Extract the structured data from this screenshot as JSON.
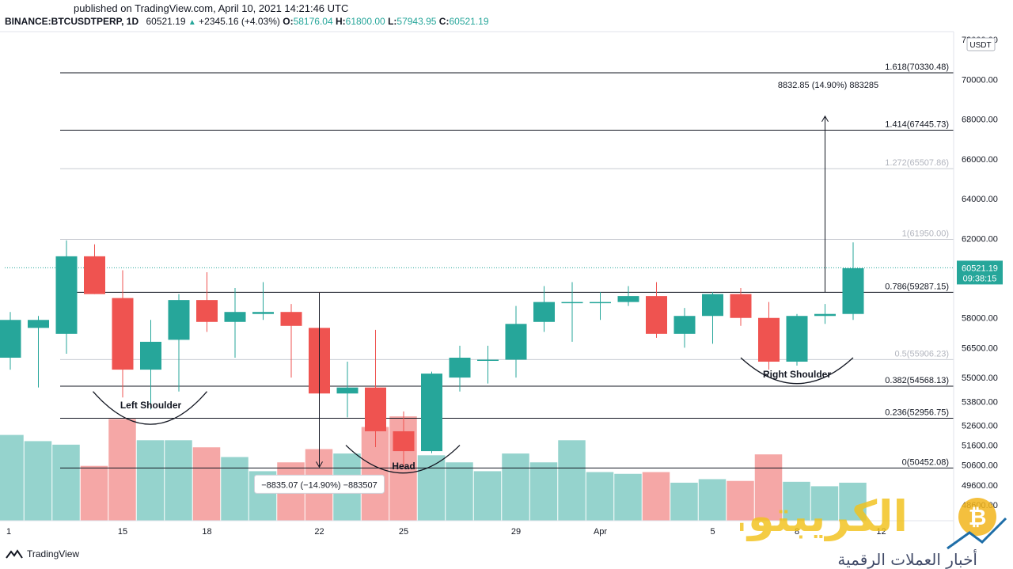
{
  "published": "published on TradingView.com, April 10, 2021 14:21:46 UTC",
  "header": {
    "symbol": "BINANCE:BTCUSDTPERP, 1D",
    "last": "60521.19",
    "change": "+2345.16 (+4.03%)",
    "o_label": "O:",
    "o": "58176.04",
    "h_label": "H:",
    "h": "61800.00",
    "l_label": "L:",
    "l": "57943.95",
    "c_label": "C:",
    "c": "60521.19"
  },
  "footer": {
    "brand": "TradingView"
  },
  "colors": {
    "up": "#26a69a",
    "down": "#ef5350",
    "vol_up": "#95d3cd",
    "vol_down": "#f5a7a6",
    "fib_faint": "#c8cbd2",
    "fib_line": "#131722"
  },
  "watermark": {
    "name_ar": "الكريبتو.نت",
    "tagline_ar": "أخبار العملات الرقمية"
  },
  "chart_data": {
    "type": "candlestick",
    "ylim": [
      47800,
      72200
    ],
    "currency": "USDT",
    "y_ticks": [
      {
        "value": 72000,
        "label": "72000.00"
      },
      {
        "value": 70000,
        "label": "70000.00"
      },
      {
        "value": 68000,
        "label": "68000.00"
      },
      {
        "value": 66000,
        "label": "66000.00"
      },
      {
        "value": 64000,
        "label": "64000.00"
      },
      {
        "value": 62000,
        "label": "62000.00"
      },
      {
        "value": 58000,
        "label": "58000.00"
      },
      {
        "value": 56500,
        "label": "56500.00"
      },
      {
        "value": 55000,
        "label": "55000.00"
      },
      {
        "value": 53800,
        "label": "53800.00"
      },
      {
        "value": 52600,
        "label": "52600.00"
      },
      {
        "value": 51600,
        "label": "51600.00"
      },
      {
        "value": 50600,
        "label": "50600.00"
      },
      {
        "value": 49600,
        "label": "49600.00"
      },
      {
        "value": 48600,
        "label": "48600.00"
      }
    ],
    "x_ticks": [
      {
        "index": 0,
        "label": "1"
      },
      {
        "index": 4,
        "label": "15"
      },
      {
        "index": 7,
        "label": "18"
      },
      {
        "index": 11,
        "label": "22"
      },
      {
        "index": 14,
        "label": "25"
      },
      {
        "index": 18,
        "label": "29"
      },
      {
        "index": 21,
        "label": "Apr"
      },
      {
        "index": 25,
        "label": "5"
      },
      {
        "index": 28,
        "label": "8"
      },
      {
        "index": 31,
        "label": "12"
      }
    ],
    "candles": [
      {
        "o": 56000,
        "h": 58300,
        "l": 55400,
        "c": 57900,
        "vol": 0.97
      },
      {
        "o": 57500,
        "h": 58100,
        "l": 54500,
        "c": 57900,
        "vol": 0.9
      },
      {
        "o": 57200,
        "h": 61900,
        "l": 56200,
        "c": 61100,
        "vol": 0.86
      },
      {
        "o": 61100,
        "h": 61700,
        "l": 59200,
        "c": 59200,
        "vol": 0.62
      },
      {
        "o": 59000,
        "h": 60400,
        "l": 54000,
        "c": 55400,
        "vol": 1.15
      },
      {
        "o": 55400,
        "h": 57900,
        "l": 53400,
        "c": 56800,
        "vol": 0.91
      },
      {
        "o": 56900,
        "h": 59200,
        "l": 54300,
        "c": 58900,
        "vol": 0.91
      },
      {
        "o": 58900,
        "h": 60300,
        "l": 57300,
        "c": 57800,
        "vol": 0.83
      },
      {
        "o": 57800,
        "h": 59500,
        "l": 56000,
        "c": 58300,
        "vol": 0.72
      },
      {
        "o": 58200,
        "h": 59800,
        "l": 57900,
        "c": 58300,
        "vol": 0.56
      },
      {
        "o": 58300,
        "h": 58700,
        "l": 55000,
        "c": 57600,
        "vol": 0.66
      },
      {
        "o": 57500,
        "h": 59300,
        "l": 53800,
        "c": 54200,
        "vol": 0.81
      },
      {
        "o": 54200,
        "h": 55800,
        "l": 53000,
        "c": 54500,
        "vol": 0.76
      },
      {
        "o": 54500,
        "h": 57400,
        "l": 51500,
        "c": 52300,
        "vol": 1.06
      },
      {
        "o": 52300,
        "h": 53300,
        "l": 50500,
        "c": 51300,
        "vol": 1.18
      },
      {
        "o": 51300,
        "h": 55300,
        "l": 51200,
        "c": 55200,
        "vol": 0.74
      },
      {
        "o": 55000,
        "h": 56600,
        "l": 54300,
        "c": 56000,
        "vol": 0.66
      },
      {
        "o": 55900,
        "h": 56600,
        "l": 54700,
        "c": 55900,
        "vol": 0.56
      },
      {
        "o": 55900,
        "h": 58600,
        "l": 55000,
        "c": 57700,
        "vol": 0.76
      },
      {
        "o": 57800,
        "h": 59600,
        "l": 57300,
        "c": 58800,
        "vol": 0.66
      },
      {
        "o": 58800,
        "h": 59800,
        "l": 56800,
        "c": 58800,
        "vol": 0.91
      },
      {
        "o": 58800,
        "h": 59300,
        "l": 57900,
        "c": 58800,
        "vol": 0.55
      },
      {
        "o": 58800,
        "h": 59600,
        "l": 58600,
        "c": 59100,
        "vol": 0.53
      },
      {
        "o": 59100,
        "h": 59800,
        "l": 57000,
        "c": 57200,
        "vol": 0.55
      },
      {
        "o": 57200,
        "h": 58500,
        "l": 56500,
        "c": 58100,
        "vol": 0.43
      },
      {
        "o": 58100,
        "h": 59300,
        "l": 56700,
        "c": 59200,
        "vol": 0.47
      },
      {
        "o": 59200,
        "h": 59500,
        "l": 57600,
        "c": 58000,
        "vol": 0.45
      },
      {
        "o": 58000,
        "h": 58800,
        "l": 55400,
        "c": 55800,
        "vol": 0.75
      },
      {
        "o": 55800,
        "h": 58200,
        "l": 55600,
        "c": 58100,
        "vol": 0.44
      },
      {
        "o": 58100,
        "h": 58700,
        "l": 57700,
        "c": 58200,
        "vol": 0.39
      },
      {
        "o": 58200,
        "h": 61800,
        "l": 57900,
        "c": 60500,
        "vol": 0.43
      }
    ],
    "fib_levels": [
      {
        "value": 70330.48,
        "label": "1.618(70330.48)",
        "faint": false
      },
      {
        "value": 67445.73,
        "label": "1.414(67445.73)",
        "faint": false
      },
      {
        "value": 65507.86,
        "label": "1.272(65507.86)",
        "faint": true
      },
      {
        "value": 61950.0,
        "label": "1(61950.00)",
        "faint": true
      },
      {
        "value": 59287.15,
        "label": "0.786(59287.15)",
        "faint": false
      },
      {
        "value": 55906.23,
        "label": "0.5(55906.23)",
        "faint": true
      },
      {
        "value": 54568.13,
        "label": "0.382(54568.13)",
        "faint": false
      },
      {
        "value": 52956.75,
        "label": "0.236(52956.75)",
        "faint": false
      },
      {
        "value": 50452.08,
        "label": "0(50452.08)",
        "faint": false
      }
    ],
    "current_price": {
      "value": 60521.19,
      "label": "60521.19",
      "countdown": "09:38:15"
    },
    "annotations": {
      "left_shoulder": "Left Shoulder",
      "head": "Head",
      "right_shoulder": "Right Shoulder",
      "measure_down": "−8835.07 (−14.90%) −883507",
      "measure_up": "8832.85 (14.90%) 883285"
    }
  }
}
